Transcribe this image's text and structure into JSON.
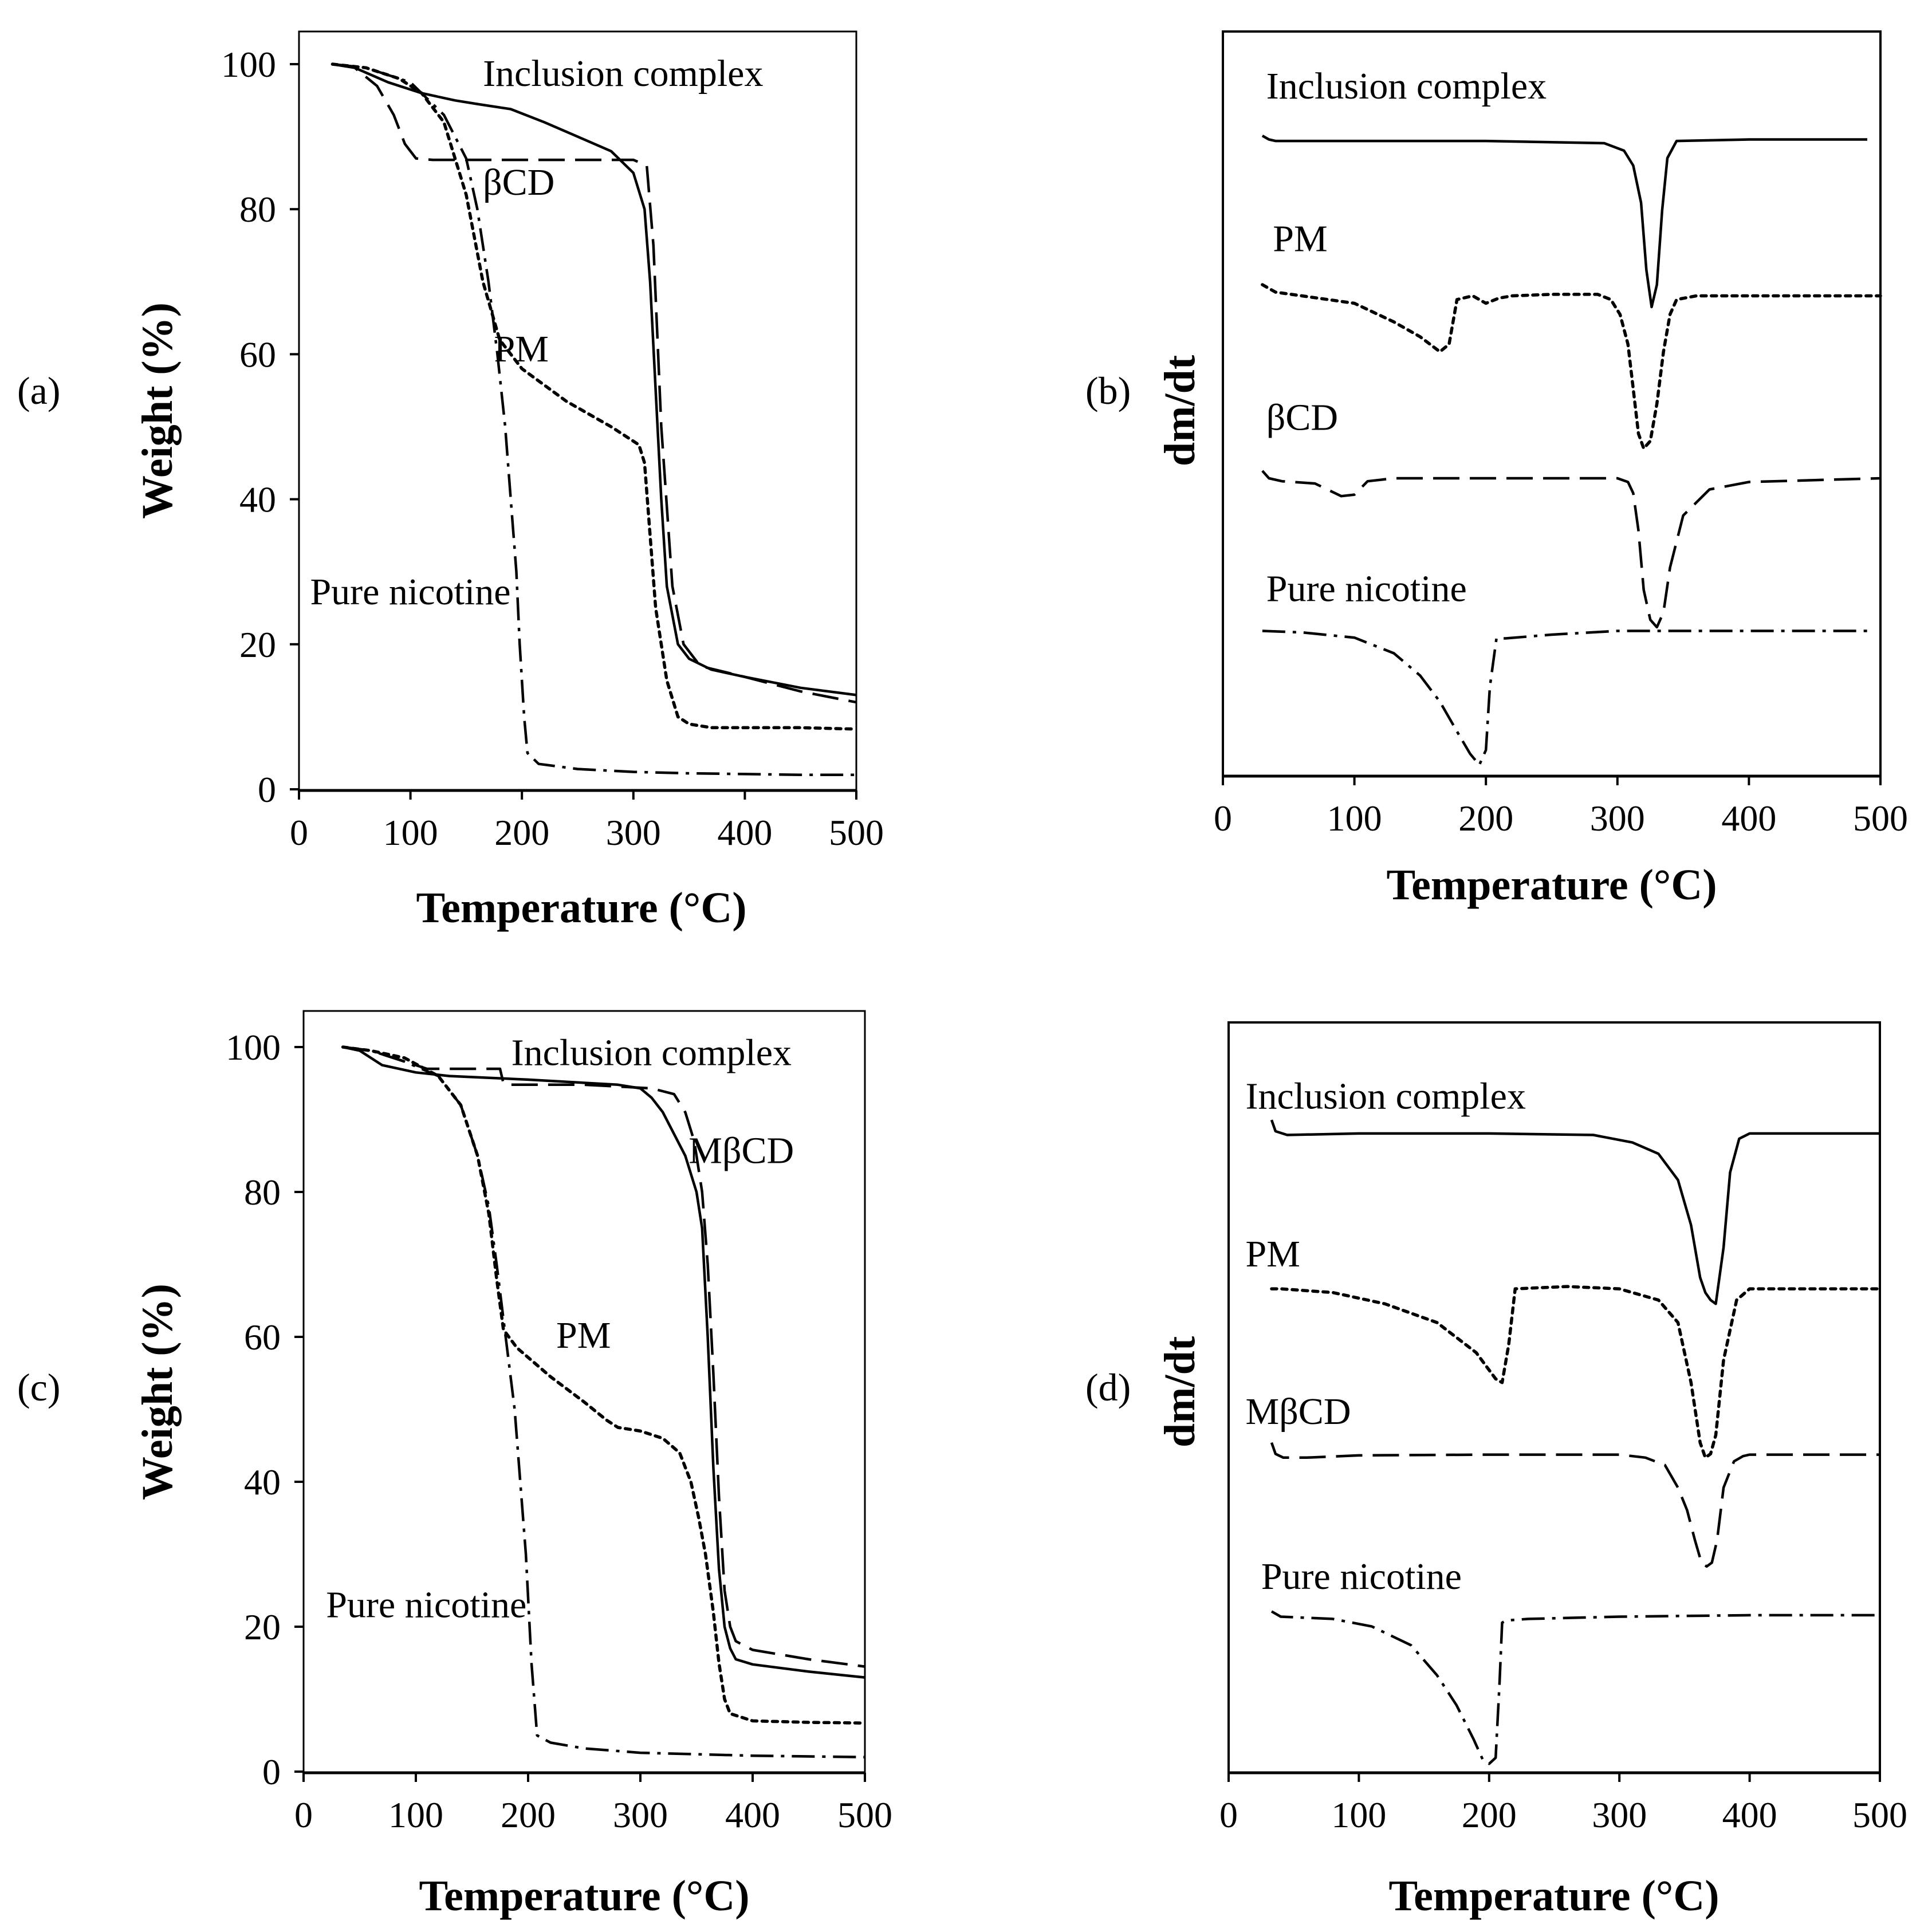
{
  "chart_data": [
    {
      "id": "a",
      "type": "line",
      "panel_label": "(a)",
      "xlabel": "Temperature (°C)",
      "ylabel": "Weight (%)",
      "xlim": [
        0,
        500
      ],
      "ylim": [
        0,
        100
      ],
      "xticks": [
        "0",
        "100",
        "200",
        "300",
        "400",
        "500"
      ],
      "yticks": [
        "0",
        "20",
        "40",
        "60",
        "80",
        "100"
      ],
      "series": [
        {
          "name": "Inclusion complex",
          "style": "solid",
          "label_at": [
            165,
            97
          ],
          "x": [
            30,
            50,
            80,
            110,
            140,
            160,
            190,
            220,
            250,
            280,
            300,
            310,
            315,
            320,
            325,
            330,
            340,
            350,
            370,
            400,
            450,
            500
          ],
          "y": [
            100,
            99.5,
            97.5,
            96,
            95,
            94.5,
            93.8,
            92,
            90,
            88,
            85,
            80,
            70,
            55,
            40,
            28,
            20,
            18,
            16.5,
            15.5,
            14,
            13
          ]
        },
        {
          "name": "βCD",
          "style": "dashed",
          "label_at": [
            165,
            82
          ],
          "x": [
            30,
            50,
            70,
            85,
            95,
            105,
            120,
            200,
            300,
            312,
            318,
            325,
            335,
            345,
            360,
            400,
            450,
            500
          ],
          "y": [
            100,
            99.5,
            97,
            93,
            89,
            87,
            86.8,
            86.8,
            86.8,
            86,
            75,
            50,
            28,
            20,
            17,
            15.5,
            13.5,
            12
          ]
        },
        {
          "name": "PM",
          "style": "dotted",
          "label_at": [
            175,
            59
          ],
          "x": [
            30,
            60,
            90,
            110,
            130,
            150,
            165,
            180,
            200,
            240,
            280,
            305,
            310,
            315,
            320,
            330,
            340,
            350,
            370,
            400,
            450,
            500
          ],
          "y": [
            100,
            99.5,
            98,
            96,
            92,
            82,
            70,
            62,
            58,
            53.5,
            50,
            47.5,
            45,
            35,
            25,
            15,
            10,
            9,
            8.5,
            8.5,
            8.5,
            8.3
          ]
        },
        {
          "name": "Pure nicotine",
          "style": "dashdot",
          "label_at": [
            10,
            25.5
          ],
          "x": [
            30,
            60,
            100,
            130,
            150,
            160,
            170,
            178,
            185,
            190,
            195,
            198,
            202,
            205,
            215,
            250,
            300,
            350,
            400,
            450,
            500
          ],
          "y": [
            100,
            99.5,
            97.5,
            93,
            87,
            80,
            70,
            60,
            50,
            40,
            30,
            20,
            10,
            5,
            3.5,
            2.8,
            2.4,
            2.2,
            2.1,
            2,
            2
          ]
        }
      ]
    },
    {
      "id": "b",
      "type": "line",
      "panel_label": "(b)",
      "xlabel": "Temperature (°C)",
      "ylabel": "dm/dt",
      "xlim": [
        0,
        500
      ],
      "ylim": [
        0,
        100
      ],
      "xticks": [
        "0",
        "100",
        "200",
        "300",
        "400",
        "500"
      ],
      "yticks": [],
      "series": [
        {
          "name": "Inclusion complex",
          "style": "solid",
          "label_at": [
            33,
            91
          ],
          "x": [
            30,
            35,
            40,
            100,
            200,
            290,
            305,
            312,
            318,
            322,
            326,
            330,
            334,
            338,
            345,
            400,
            450,
            490
          ],
          "y": [
            86,
            85.5,
            85.3,
            85.3,
            85.3,
            85,
            84,
            82,
            77,
            68,
            63,
            66,
            76,
            83,
            85.3,
            85.5,
            85.5,
            85.5
          ]
        },
        {
          "name": "PM",
          "style": "dotted",
          "label_at": [
            38,
            70.5
          ],
          "x": [
            30,
            40,
            60,
            100,
            130,
            150,
            165,
            172,
            178,
            190,
            200,
            210,
            220,
            250,
            285,
            295,
            302,
            308,
            312,
            316,
            320,
            325,
            330,
            335,
            340,
            345,
            360,
            400,
            500
          ],
          "y": [
            66,
            65,
            64.5,
            63.5,
            61,
            59,
            57,
            58,
            64,
            64.5,
            63.5,
            64.2,
            64.5,
            64.7,
            64.7,
            64,
            62,
            58,
            52,
            46,
            44,
            45,
            50,
            57,
            62,
            64,
            64.5,
            64.5,
            64.5
          ]
        },
        {
          "name": "βCD",
          "style": "dashed",
          "label_at": [
            33,
            46.5
          ],
          "x": [
            30,
            35,
            45,
            70,
            90,
            100,
            110,
            130,
            200,
            300,
            308,
            312,
            316,
            320,
            325,
            330,
            335,
            340,
            350,
            370,
            400,
            500
          ],
          "y": [
            41,
            40,
            39.6,
            39.3,
            37.6,
            37.8,
            39.6,
            40,
            40,
            40,
            39.5,
            38,
            33,
            25,
            21,
            20,
            22,
            28,
            35,
            38.5,
            39.5,
            40
          ]
        },
        {
          "name": "Pure nicotine",
          "style": "dashdot",
          "label_at": [
            33,
            23.5
          ],
          "x": [
            30,
            60,
            100,
            130,
            150,
            165,
            178,
            188,
            195,
            200,
            203,
            208,
            215,
            250,
            300,
            400,
            490
          ],
          "y": [
            19.5,
            19.3,
            18.6,
            16.5,
            13.5,
            10,
            6,
            3,
            1.5,
            3.5,
            12,
            18.5,
            18.5,
            19,
            19.5,
            19.5,
            19.5
          ]
        }
      ]
    },
    {
      "id": "c",
      "type": "line",
      "panel_label": "(c)",
      "xlabel": "Temperature (°C)",
      "ylabel": "Weight (%)",
      "xlim": [
        0,
        500
      ],
      "ylim": [
        0,
        100
      ],
      "xticks": [
        "0",
        "100",
        "200",
        "300",
        "400",
        "500"
      ],
      "yticks": [
        "0",
        "20",
        "40",
        "60",
        "80",
        "100"
      ],
      "series": [
        {
          "name": "Inclusion complex",
          "style": "solid",
          "label_at": [
            185,
            97.5
          ],
          "x": [
            35,
            50,
            70,
            100,
            130,
            200,
            280,
            300,
            310,
            320,
            330,
            340,
            350,
            355,
            360,
            365,
            370,
            375,
            380,
            385,
            400,
            450,
            500
          ],
          "y": [
            100,
            99.5,
            97.5,
            96.5,
            96,
            95.5,
            94.8,
            94.3,
            93,
            91,
            88,
            85,
            80,
            75,
            60,
            42,
            28,
            20,
            17,
            15.5,
            14.8,
            13.8,
            13
          ]
        },
        {
          "name": "MβCD",
          "style": "dashed",
          "label_at": [
            343,
            84
          ],
          "x": [
            35,
            60,
            90,
            110,
            125,
            175,
            178,
            185,
            250,
            310,
            330,
            340,
            348,
            355,
            360,
            365,
            370,
            375,
            380,
            385,
            400,
            450,
            500
          ],
          "y": [
            100,
            99.5,
            98,
            97,
            97,
            97,
            95,
            94.8,
            94.8,
            94.3,
            93.5,
            91,
            87,
            80,
            70,
            55,
            38,
            25,
            20,
            18,
            16.8,
            15.5,
            14.5
          ]
        },
        {
          "name": "PM",
          "style": "dotted",
          "label_at": [
            225,
            58.5
          ],
          "x": [
            35,
            60,
            90,
            120,
            140,
            155,
            165,
            172,
            178,
            190,
            220,
            250,
            270,
            280,
            300,
            320,
            335,
            345,
            352,
            358,
            365,
            370,
            375,
            380,
            400,
            450,
            500
          ],
          "y": [
            100,
            99.5,
            98.5,
            96,
            92,
            85,
            77,
            68,
            61,
            58.5,
            54.5,
            51,
            48.5,
            47.5,
            47,
            46,
            44,
            40,
            35,
            30,
            22,
            15,
            10,
            8,
            7,
            6.8,
            6.7
          ]
        },
        {
          "name": "Pure nicotine",
          "style": "dashdot",
          "label_at": [
            20,
            21.3
          ],
          "x": [
            35,
            60,
            90,
            120,
            140,
            155,
            165,
            172,
            180,
            188,
            193,
            198,
            203,
            208,
            220,
            250,
            300,
            400,
            500
          ],
          "y": [
            100,
            99.5,
            98,
            96,
            92,
            85,
            78,
            70,
            60,
            50,
            40,
            30,
            15,
            5,
            4,
            3.2,
            2.6,
            2.2,
            2
          ]
        }
      ]
    },
    {
      "id": "d",
      "type": "line",
      "panel_label": "(d)",
      "xlabel": "Temperature (°C)",
      "ylabel": "dm/dt",
      "xlim": [
        0,
        500
      ],
      "ylim": [
        0,
        100
      ],
      "xticks": [
        "0",
        "100",
        "200",
        "300",
        "400",
        "500"
      ],
      "yticks": [],
      "series": [
        {
          "name": "Inclusion complex",
          "style": "solid",
          "label_at": [
            13,
            88.5
          ],
          "x": [
            33,
            36,
            45,
            100,
            200,
            280,
            310,
            330,
            345,
            355,
            362,
            366,
            370,
            374,
            380,
            385,
            392,
            400,
            450,
            500
          ],
          "y": [
            87,
            85.5,
            85,
            85.2,
            85.2,
            85,
            84,
            82.5,
            79,
            73,
            66,
            64,
            63,
            62.5,
            70,
            80,
            84.5,
            85.2,
            85.2,
            85.2
          ]
        },
        {
          "name": "PM",
          "style": "dotted",
          "label_at": [
            13,
            67.5
          ],
          "x": [
            33,
            40,
            80,
            120,
            160,
            190,
            205,
            210,
            215,
            220,
            260,
            300,
            330,
            345,
            355,
            362,
            366,
            370,
            374,
            380,
            390,
            400,
            450,
            500
          ],
          "y": [
            64.5,
            64.5,
            64,
            62.5,
            60,
            56,
            52.5,
            52,
            57,
            64.5,
            64.8,
            64.5,
            63,
            60,
            52,
            44,
            42,
            42.5,
            45,
            55,
            63,
            64.5,
            64.5,
            64.5
          ]
        },
        {
          "name": "MβCD",
          "style": "dashed",
          "label_at": [
            13,
            46.5
          ],
          "x": [
            33,
            36,
            42,
            60,
            100,
            200,
            300,
            320,
            335,
            345,
            352,
            358,
            363,
            367,
            371,
            375,
            380,
            388,
            395,
            400,
            450,
            500
          ],
          "y": [
            44,
            42.5,
            42,
            42,
            42.3,
            42.4,
            42.4,
            42,
            41,
            38,
            35,
            31,
            28,
            27.5,
            28,
            31,
            38,
            41.5,
            42.2,
            42.4,
            42.4,
            42.4
          ]
        },
        {
          "name": "Pure nicotine",
          "style": "dashdot",
          "label_at": [
            25,
            24.5
          ],
          "x": [
            33,
            40,
            80,
            110,
            140,
            160,
            175,
            188,
            195,
            200,
            205,
            208,
            210,
            213,
            230,
            300,
            400,
            500
          ],
          "y": [
            21.5,
            20.8,
            20.5,
            19.5,
            17,
            13,
            9,
            4.5,
            1.8,
            1.2,
            2,
            12,
            20,
            20.3,
            20.5,
            20.8,
            21,
            21
          ]
        }
      ]
    }
  ]
}
